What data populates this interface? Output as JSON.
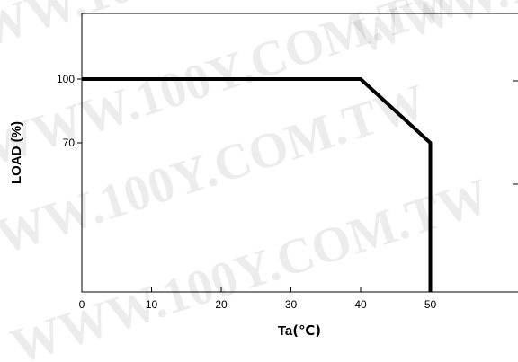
{
  "chart_data": {
    "type": "line",
    "title": "",
    "xlabel": "Ta",
    "xlabel_unit": "(℃)",
    "ylabel": "LOAD (%)",
    "xlim": [
      0,
      60
    ],
    "ylim": [
      0,
      120
    ],
    "x_ticks": [
      0,
      10,
      20,
      30,
      40,
      50
    ],
    "x_tick_labels": [
      "0",
      "10",
      "20",
      "30",
      "40",
      "50"
    ],
    "y_ticks": [
      100,
      70
    ],
    "y_tick_labels": [
      "100",
      "70"
    ],
    "series": [
      {
        "x": [
          0,
          40,
          50,
          50
        ],
        "y": [
          100,
          100,
          70,
          0
        ],
        "color": "#000000"
      }
    ],
    "grid": false,
    "legend": "none"
  },
  "watermark": "WWW.100Y.COM.TW"
}
